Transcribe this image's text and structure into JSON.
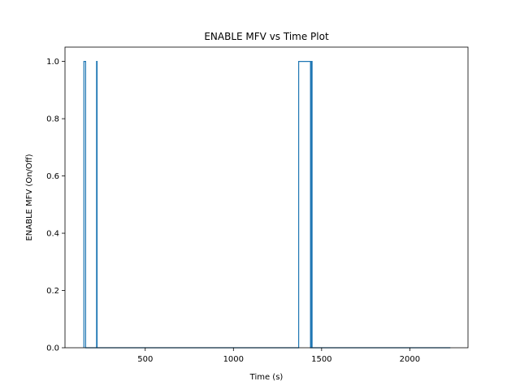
{
  "chart_data": {
    "type": "line",
    "title": "ENABLE MFV vs Time Plot",
    "xlabel": "Time (s)",
    "ylabel": "ENABLE MFV (On/Off)",
    "xlim": [
      45,
      2330
    ],
    "ylim": [
      0.0,
      1.05
    ],
    "xticks": [
      500,
      1000,
      1500,
      2000
    ],
    "yticks": [
      0.0,
      0.2,
      0.4,
      0.6,
      0.8,
      1.0
    ],
    "xtick_labels": [
      "500",
      "1000",
      "1500",
      "2000"
    ],
    "ytick_labels": [
      "0.0",
      "0.2",
      "0.4",
      "0.6",
      "0.8",
      "1.0"
    ],
    "grid": false,
    "color": "#1f77b4",
    "series": [
      {
        "x": [
          152,
          152,
          162,
          162,
          224,
          224,
          227,
          227,
          1370,
          1370,
          1437,
          1437,
          1441,
          1441,
          1446,
          1446,
          2230
        ],
        "y": [
          0,
          1,
          1,
          0,
          0,
          1,
          1,
          0,
          0,
          1,
          1,
          0,
          0,
          1,
          1,
          0,
          0
        ]
      }
    ]
  }
}
